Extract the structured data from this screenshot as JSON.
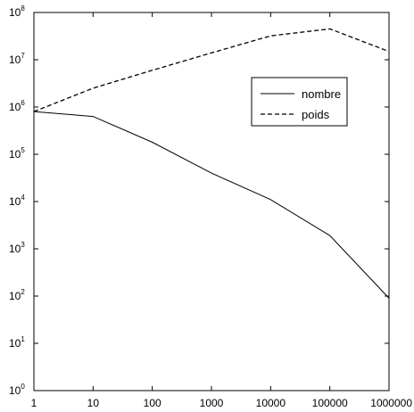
{
  "chart_data": {
    "type": "line",
    "xscale": "log",
    "yscale": "log",
    "xlim": [
      1,
      1000000
    ],
    "ylim": [
      1,
      100000000
    ],
    "xticks": [
      {
        "value": 1,
        "label": "1"
      },
      {
        "value": 10,
        "label": "10"
      },
      {
        "value": 100,
        "label": "100"
      },
      {
        "value": 1000,
        "label": "1000"
      },
      {
        "value": 10000,
        "label": "10000"
      },
      {
        "value": 100000,
        "label": "100000"
      },
      {
        "value": 1000000,
        "label": "1000000"
      }
    ],
    "yticks": [
      {
        "value": 1,
        "base": "10",
        "exp": "0"
      },
      {
        "value": 10,
        "base": "10",
        "exp": "1"
      },
      {
        "value": 100,
        "base": "10",
        "exp": "2"
      },
      {
        "value": 1000,
        "base": "10",
        "exp": "3"
      },
      {
        "value": 10000,
        "base": "10",
        "exp": "4"
      },
      {
        "value": 100000,
        "base": "10",
        "exp": "5"
      },
      {
        "value": 1000000,
        "base": "10",
        "exp": "6"
      },
      {
        "value": 10000000,
        "base": "10",
        "exp": "7"
      },
      {
        "value": 100000000,
        "base": "10",
        "exp": "8"
      }
    ],
    "series": [
      {
        "name": "nombre",
        "style": "solid",
        "color": "#000000",
        "x": [
          1,
          10,
          100,
          1000,
          10000,
          100000,
          1000000
        ],
        "y": [
          800000,
          630000,
          180000,
          40000,
          11000,
          1900,
          90
        ]
      },
      {
        "name": "poids",
        "style": "dashed",
        "color": "#000000",
        "x": [
          1,
          10,
          100,
          1000,
          10000,
          100000,
          1000000
        ],
        "y": [
          800000,
          2500000,
          6000000,
          14000000,
          32000000,
          45000000,
          15000000
        ]
      }
    ],
    "grid": false,
    "legend": "upper-right-inside"
  }
}
